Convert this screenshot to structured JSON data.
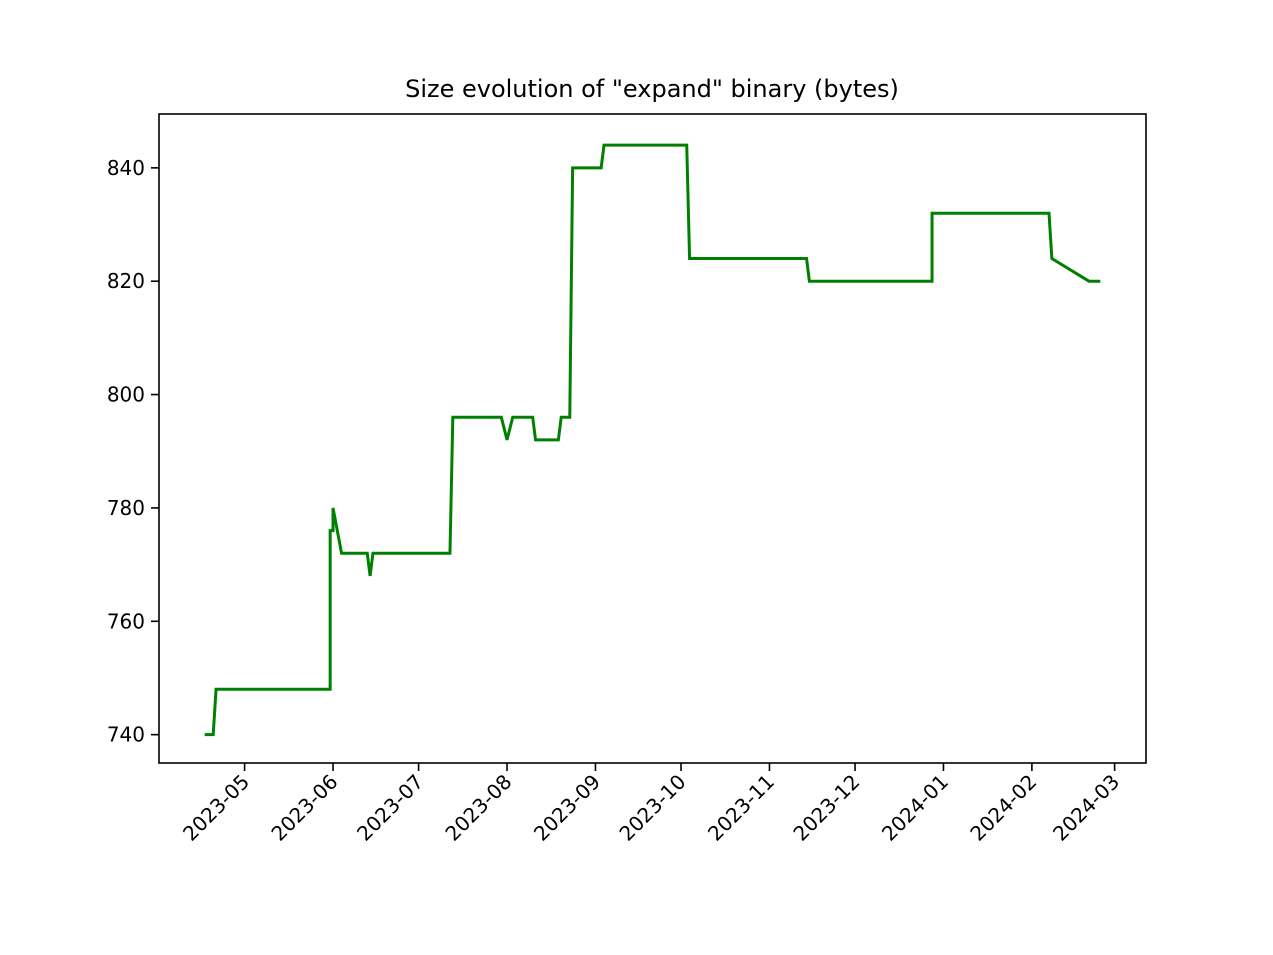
{
  "chart_data": {
    "type": "line",
    "title": "Size evolution of \"expand\" binary (bytes)",
    "xlabel": "",
    "ylabel": "",
    "x_axis": "date",
    "xlim": [
      "2023-04-01",
      "2024-03-12"
    ],
    "ylim": [
      735,
      849.5
    ],
    "grid": false,
    "legend": "none",
    "x_ticks": [
      "2023-05",
      "2023-06",
      "2023-07",
      "2023-08",
      "2023-09",
      "2023-10",
      "2023-11",
      "2023-12",
      "2024-01",
      "2024-02",
      "2024-03"
    ],
    "x_tick_dates": [
      "2023-05-01",
      "2023-06-01",
      "2023-07-01",
      "2023-08-01",
      "2023-09-01",
      "2023-10-01",
      "2023-11-01",
      "2023-12-01",
      "2024-01-01",
      "2024-02-01",
      "2024-03-01"
    ],
    "y_ticks": [
      740,
      760,
      780,
      800,
      820,
      840
    ],
    "series": [
      {
        "color": "#008000",
        "points": [
          [
            "2023-04-17",
            740
          ],
          [
            "2023-04-20",
            740
          ],
          [
            "2023-04-21",
            748
          ],
          [
            "2023-05-31",
            748
          ],
          [
            "2023-05-31",
            776
          ],
          [
            "2023-06-01",
            776
          ],
          [
            "2023-06-01",
            780
          ],
          [
            "2023-06-04",
            772
          ],
          [
            "2023-06-13",
            772
          ],
          [
            "2023-06-14",
            768
          ],
          [
            "2023-06-15",
            772
          ],
          [
            "2023-07-12",
            772
          ],
          [
            "2023-07-13",
            796
          ],
          [
            "2023-07-30",
            796
          ],
          [
            "2023-08-01",
            792
          ],
          [
            "2023-08-03",
            796
          ],
          [
            "2023-08-10",
            796
          ],
          [
            "2023-08-11",
            792
          ],
          [
            "2023-08-19",
            792
          ],
          [
            "2023-08-20",
            796
          ],
          [
            "2023-08-23",
            796
          ],
          [
            "2023-08-24",
            840
          ],
          [
            "2023-09-03",
            840
          ],
          [
            "2023-09-04",
            844
          ],
          [
            "2023-10-03",
            844
          ],
          [
            "2023-10-04",
            824
          ],
          [
            "2023-11-14",
            824
          ],
          [
            "2023-11-15",
            820
          ],
          [
            "2023-12-28",
            820
          ],
          [
            "2023-12-28",
            832
          ],
          [
            "2024-02-07",
            832
          ],
          [
            "2024-02-08",
            824
          ],
          [
            "2024-02-21",
            820
          ],
          [
            "2024-02-25",
            820
          ]
        ]
      }
    ]
  }
}
